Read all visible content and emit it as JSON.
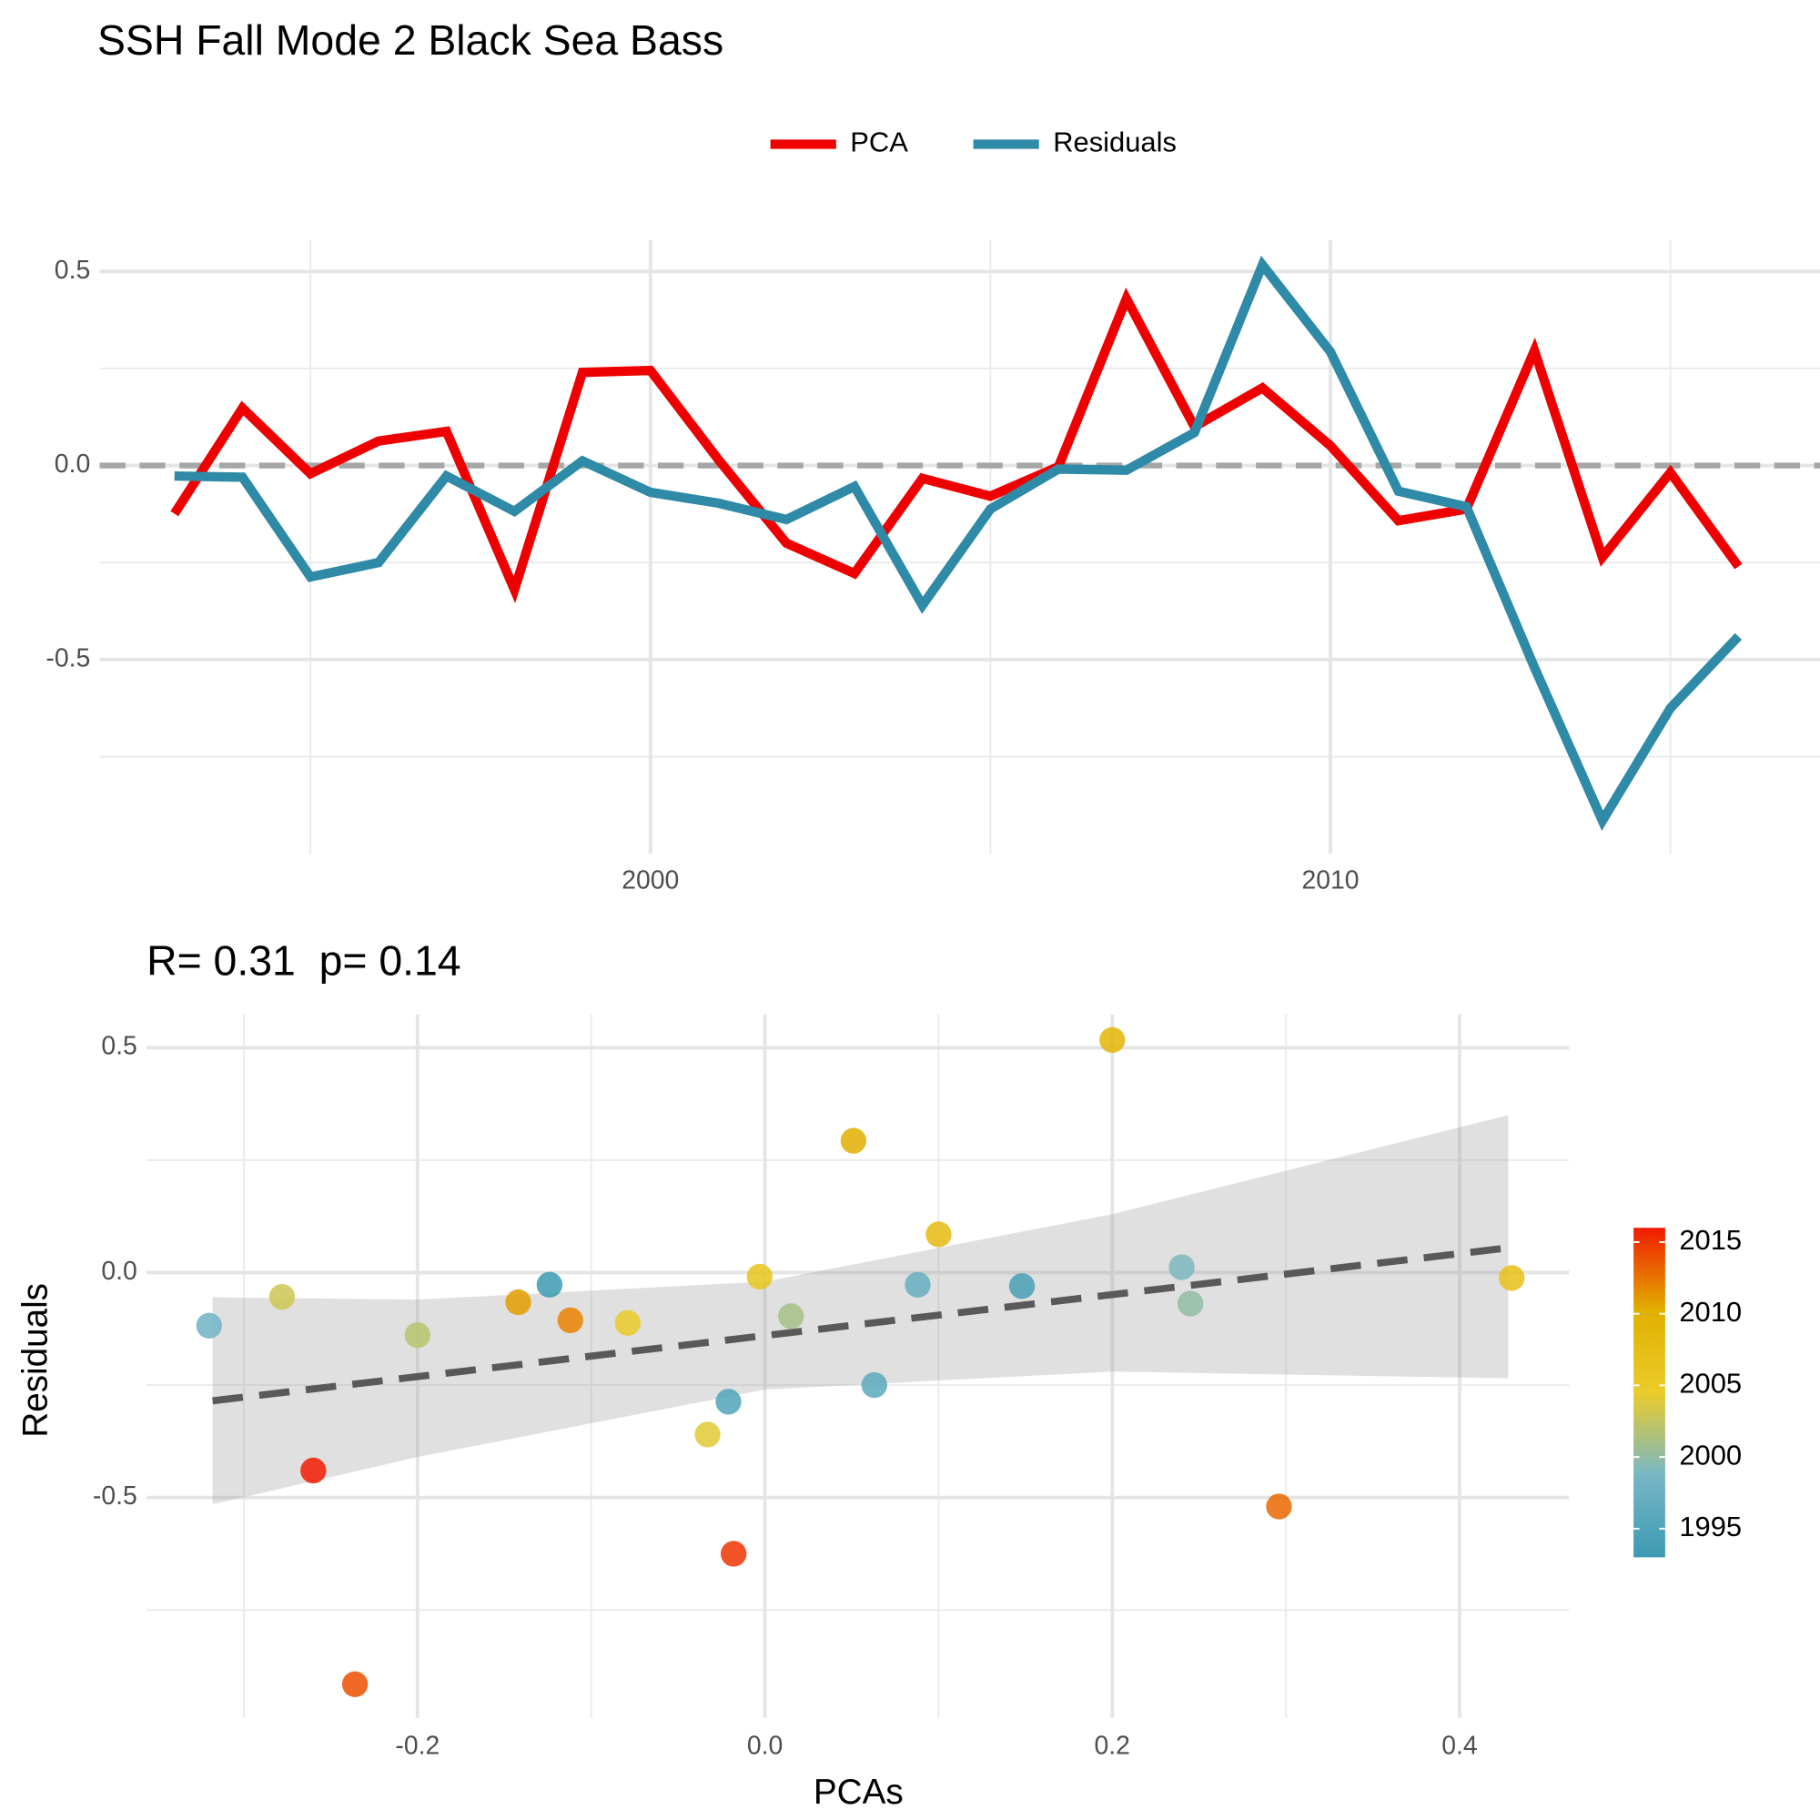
{
  "chart_data": [
    {
      "type": "line",
      "title": "SSH Fall Mode 2 Black Sea Bass",
      "x": [
        1993,
        1994,
        1995,
        1996,
        1997,
        1998,
        1999,
        2000,
        2001,
        2002,
        2003,
        2004,
        2005,
        2006,
        2007,
        2008,
        2009,
        2010,
        2011,
        2012,
        2013,
        2014,
        2015,
        2016
      ],
      "series": [
        {
          "name": "PCA",
          "color": "#ee0000",
          "values": [
            -0.124,
            0.148,
            -0.021,
            0.063,
            0.088,
            -0.32,
            0.24,
            0.245,
            0.015,
            -0.2,
            -0.278,
            -0.033,
            -0.079,
            -0.003,
            0.43,
            0.1,
            0.2,
            0.051,
            -0.142,
            -0.112,
            0.296,
            -0.236,
            -0.018,
            -0.26
          ]
        },
        {
          "name": "Residuals",
          "color": "#2e8aa6",
          "values": [
            -0.027,
            -0.03,
            -0.287,
            -0.25,
            -0.027,
            -0.118,
            0.012,
            -0.069,
            -0.097,
            -0.139,
            -0.054,
            -0.36,
            -0.112,
            -0.009,
            -0.012,
            0.085,
            0.517,
            0.293,
            -0.066,
            -0.106,
            -0.52,
            -0.915,
            -0.625,
            -0.44
          ]
        }
      ],
      "xlim": [
        1991.9,
        2017.2
      ],
      "xticks": [
        2000,
        2010
      ],
      "xgrid_minor": [
        1995,
        2005,
        2015
      ],
      "ylim": [
        -1.0,
        0.58
      ],
      "yticks": [
        -0.5,
        {
          "value": 0,
          "label": "0.0"
        },
        0.5
      ],
      "ygrid_minor": [
        -0.75,
        -0.25,
        0.25
      ],
      "reference_line": 0,
      "grid": true,
      "legend": "top"
    },
    {
      "type": "scatter",
      "title": "R= 0.31  p= 0.14",
      "x_label": "PCAs",
      "y_label": "Residuals",
      "x": [
        -0.124,
        0.148,
        -0.021,
        0.063,
        0.088,
        -0.32,
        0.24,
        0.245,
        0.015,
        -0.2,
        -0.278,
        -0.033,
        -0.079,
        -0.003,
        0.43,
        0.1,
        0.2,
        0.051,
        -0.142,
        -0.112,
        0.296,
        -0.236,
        -0.018,
        -0.26
      ],
      "values": [
        -0.027,
        -0.03,
        -0.287,
        -0.25,
        -0.027,
        -0.118,
        0.012,
        -0.069,
        -0.097,
        -0.139,
        -0.054,
        -0.36,
        -0.112,
        -0.009,
        -0.012,
        0.085,
        0.517,
        0.293,
        -0.066,
        -0.106,
        -0.52,
        -0.915,
        -0.625,
        -0.44
      ],
      "color_values": [
        1993,
        1994,
        1995,
        1996,
        1997,
        1998,
        1999,
        2000,
        2001,
        2002,
        2003,
        2004,
        2005,
        2006,
        2007,
        2008,
        2009,
        2010,
        2011,
        2012,
        2013,
        2014,
        2015,
        2016
      ],
      "color_scale": [
        "#3B9AB2",
        "#78B7C5",
        "#EBCC2A",
        "#E1AF00",
        "#F21A00"
      ],
      "color_lim": [
        1993,
        2016
      ],
      "color_ticks": [
        1995,
        2000,
        2005,
        2010,
        2015
      ],
      "trend": {
        "x": [
          -0.318,
          0.428
        ],
        "y": [
          -0.285,
          0.055
        ]
      },
      "band": {
        "x": [
          -0.318,
          -0.2,
          0.0,
          0.2,
          0.428
        ],
        "upper": [
          -0.055,
          -0.06,
          -0.02,
          0.13,
          0.35
        ],
        "lower": [
          -0.515,
          -0.41,
          -0.26,
          -0.22,
          -0.235
        ]
      },
      "xlim": [
        -0.356,
        0.463
      ],
      "xticks": [
        -0.2,
        {
          "value": 0,
          "label": "0.0"
        },
        0.2,
        0.4
      ],
      "xgrid_minor": [
        -0.3,
        -0.1,
        0.1,
        0.3
      ],
      "ylim": [
        -0.99,
        0.574
      ],
      "yticks": [
        -0.5,
        {
          "value": 0,
          "label": "0.0"
        },
        0.5
      ],
      "ygrid_minor": [
        -0.75,
        -0.25,
        0.25
      ],
      "grid": true
    }
  ]
}
